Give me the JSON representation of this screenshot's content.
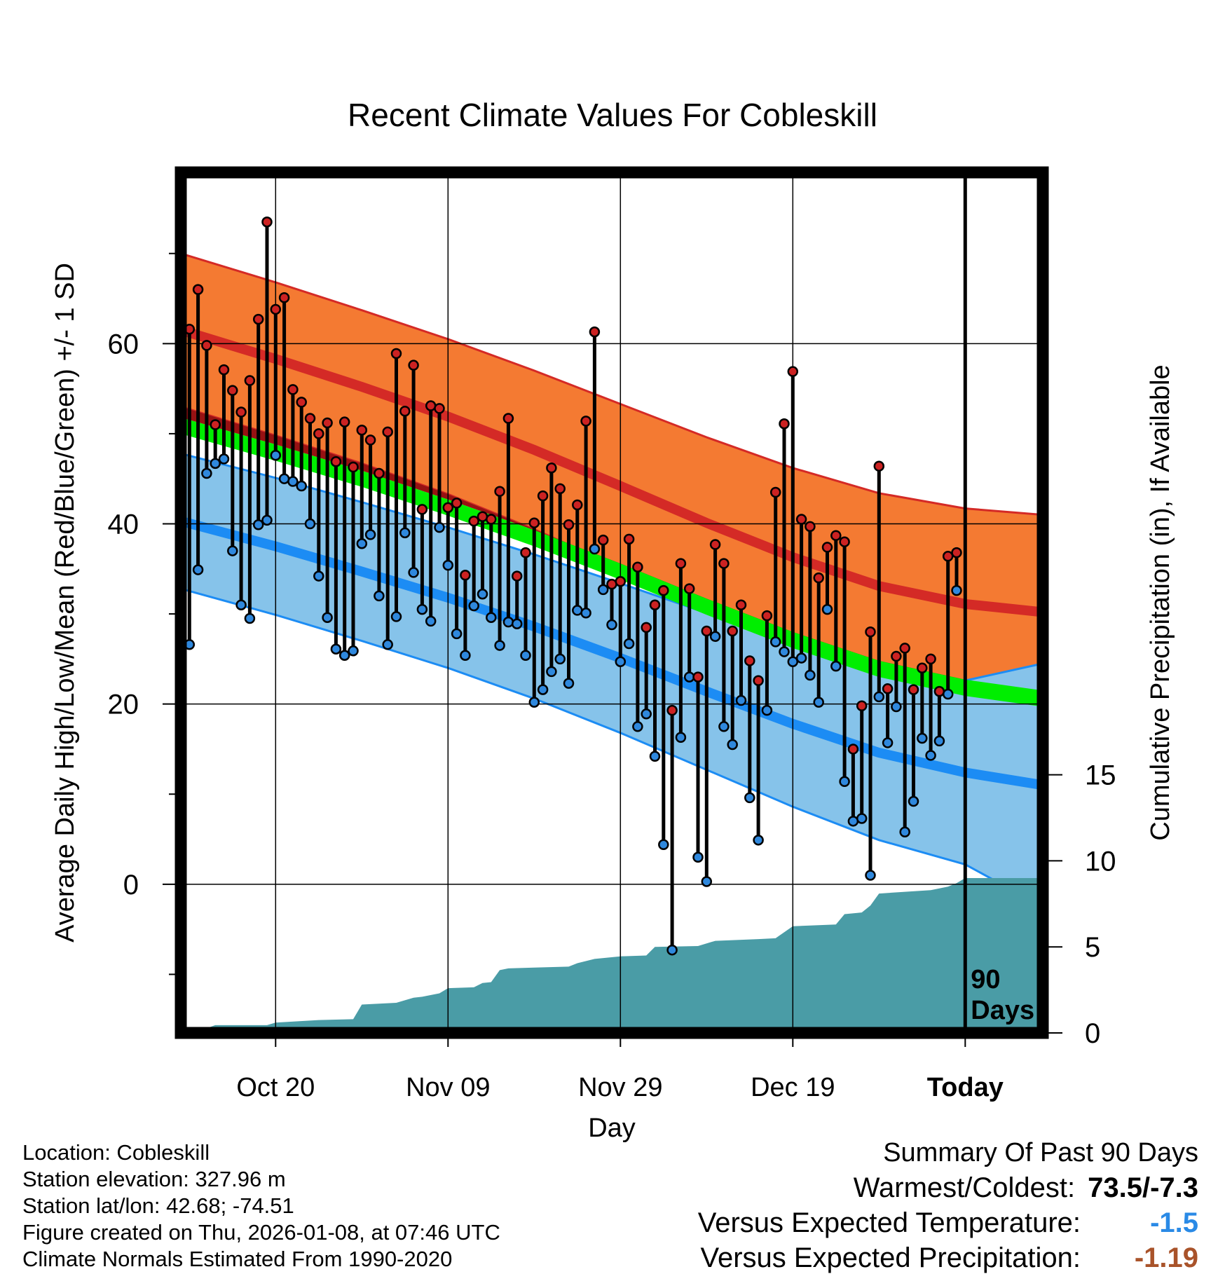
{
  "chart_data": {
    "type": "line",
    "title": "Recent Climate Values For Cobleskill",
    "xlabel": "Day",
    "ylabel": "Average Daily High/Low/Mean (Red/Blue/Green) +/- 1 SD",
    "y2label": "Cumulative Precipitation (in), If Available",
    "xlim": [
      -11,
      89
    ],
    "ylim": [
      -16.5,
      79
    ],
    "y2lim": [
      0,
      50
    ],
    "x_ticks": [
      {
        "x": 0,
        "label": "Oct 20"
      },
      {
        "x": 20,
        "label": "Nov 09"
      },
      {
        "x": 40,
        "label": "Nov 29"
      },
      {
        "x": 60,
        "label": "Dec 19"
      },
      {
        "x": 80,
        "label": "Today"
      }
    ],
    "y_ticks": [
      0,
      20,
      40,
      60
    ],
    "y2_ticks": [
      0,
      5,
      10,
      15
    ],
    "today_marker": {
      "x": 80,
      "label_line1": "90",
      "label_line2": "Days"
    },
    "normals": {
      "x": [
        -11,
        0,
        10,
        20,
        30,
        40,
        50,
        60,
        70,
        80,
        89
      ],
      "high_mean": [
        61.5,
        58.3,
        55.2,
        51.9,
        48.2,
        44.2,
        40.1,
        36.3,
        33.1,
        31.1,
        30.2
      ],
      "high_sd": [
        8.5,
        8.5,
        8.5,
        8.6,
        8.8,
        9.1,
        9.5,
        9.9,
        10.3,
        10.6,
        10.8
      ],
      "low_mean": [
        40.3,
        37.5,
        34.7,
        31.8,
        28.6,
        25.1,
        21.4,
        17.8,
        14.6,
        12.4,
        11.0
      ],
      "low_sd": [
        7.5,
        7.6,
        7.7,
        7.8,
        8.0,
        8.3,
        8.7,
        9.2,
        9.7,
        10.2,
        13.5
      ],
      "mean_temp": [
        50.9,
        47.9,
        45.0,
        41.8,
        38.4,
        34.7,
        30.8,
        27.1,
        23.9,
        21.8,
        20.6
      ],
      "mean_band": 0.9
    },
    "observed": [
      {
        "x": -10,
        "high": 61.6,
        "low": 26.6
      },
      {
        "x": -9,
        "high": 66.0,
        "low": 34.9
      },
      {
        "x": -8,
        "high": 59.8,
        "low": 45.6
      },
      {
        "x": -7,
        "high": 51.0,
        "low": 46.7
      },
      {
        "x": -6,
        "high": 57.1,
        "low": 47.2
      },
      {
        "x": -5,
        "high": 54.8,
        "low": 37.0
      },
      {
        "x": -4,
        "high": 52.4,
        "low": 31.0
      },
      {
        "x": -3,
        "high": 55.9,
        "low": 29.5
      },
      {
        "x": -2,
        "high": 62.7,
        "low": 39.9
      },
      {
        "x": -1,
        "high": 73.5,
        "low": 40.4
      },
      {
        "x": 0,
        "high": 63.8,
        "low": 47.6
      },
      {
        "x": 1,
        "high": 65.1,
        "low": 45.0
      },
      {
        "x": 2,
        "high": 54.9,
        "low": 44.7
      },
      {
        "x": 3,
        "high": 53.5,
        "low": 44.2
      },
      {
        "x": 4,
        "high": 51.7,
        "low": 40.0
      },
      {
        "x": 5,
        "high": 50.0,
        "low": 34.2
      },
      {
        "x": 6,
        "high": 51.2,
        "low": 29.6
      },
      {
        "x": 7,
        "high": 46.9,
        "low": 26.1
      },
      {
        "x": 8,
        "high": 51.3,
        "low": 25.4
      },
      {
        "x": 9,
        "high": 46.3,
        "low": 25.9
      },
      {
        "x": 10,
        "high": 50.4,
        "low": 37.8
      },
      {
        "x": 11,
        "high": 49.3,
        "low": 38.8
      },
      {
        "x": 12,
        "high": 45.6,
        "low": 32.0
      },
      {
        "x": 13,
        "high": 50.2,
        "low": 26.6
      },
      {
        "x": 14,
        "high": 58.9,
        "low": 29.7
      },
      {
        "x": 15,
        "high": 52.5,
        "low": 39.0
      },
      {
        "x": 16,
        "high": 57.6,
        "low": 34.6
      },
      {
        "x": 17,
        "high": 41.6,
        "low": 30.5
      },
      {
        "x": 18,
        "high": 53.1,
        "low": 29.2
      },
      {
        "x": 19,
        "high": 52.8,
        "low": 39.6
      },
      {
        "x": 20,
        "high": 41.8,
        "low": 35.4
      },
      {
        "x": 21,
        "high": 42.3,
        "low": 27.8
      },
      {
        "x": 22,
        "high": 34.3,
        "low": 25.4
      },
      {
        "x": 23,
        "high": 40.3,
        "low": 30.9
      },
      {
        "x": 24,
        "high": 40.8,
        "low": 32.2
      },
      {
        "x": 25,
        "high": 40.5,
        "low": 29.6
      },
      {
        "x": 26,
        "high": 43.6,
        "low": 26.5
      },
      {
        "x": 27,
        "high": 51.7,
        "low": 29.1
      },
      {
        "x": 28,
        "high": 34.2,
        "low": 28.9
      },
      {
        "x": 29,
        "high": 36.8,
        "low": 25.4
      },
      {
        "x": 30,
        "high": 40.1,
        "low": 20.2
      },
      {
        "x": 31,
        "high": 43.1,
        "low": 21.6
      },
      {
        "x": 32,
        "high": 46.2,
        "low": 23.6
      },
      {
        "x": 33,
        "high": 43.9,
        "low": 25.0
      },
      {
        "x": 34,
        "high": 39.9,
        "low": 22.3
      },
      {
        "x": 35,
        "high": 42.1,
        "low": 30.4
      },
      {
        "x": 36,
        "high": 51.4,
        "low": 30.1
      },
      {
        "x": 37,
        "high": 61.3,
        "low": 37.2
      },
      {
        "x": 38,
        "high": 38.2,
        "low": 32.7
      },
      {
        "x": 39,
        "high": 33.3,
        "low": 28.8
      },
      {
        "x": 40,
        "high": 33.6,
        "low": 24.7
      },
      {
        "x": 41,
        "high": 38.3,
        "low": 26.7
      },
      {
        "x": 42,
        "high": 35.2,
        "low": 17.5
      },
      {
        "x": 43,
        "high": 28.5,
        "low": 18.9
      },
      {
        "x": 44,
        "high": 31.0,
        "low": 14.2
      },
      {
        "x": 45,
        "high": 32.6,
        "low": 4.4
      },
      {
        "x": 46,
        "high": 19.3,
        "low": -7.3
      },
      {
        "x": 47,
        "high": 35.6,
        "low": 16.3
      },
      {
        "x": 48,
        "high": 32.8,
        "low": 23.0
      },
      {
        "x": 49,
        "high": 23.0,
        "low": 3.0
      },
      {
        "x": 50,
        "high": 28.1,
        "low": 0.3
      },
      {
        "x": 51,
        "high": 37.7,
        "low": 27.5
      },
      {
        "x": 52,
        "high": 35.6,
        "low": 17.5
      },
      {
        "x": 53,
        "high": 28.1,
        "low": 15.5
      },
      {
        "x": 54,
        "high": 31.0,
        "low": 20.4
      },
      {
        "x": 55,
        "high": 24.8,
        "low": 9.6
      },
      {
        "x": 56,
        "high": 22.6,
        "low": 4.9
      },
      {
        "x": 57,
        "high": 29.8,
        "low": 19.3
      },
      {
        "x": 58,
        "high": 43.5,
        "low": 26.9
      },
      {
        "x": 59,
        "high": 51.1,
        "low": 25.8
      },
      {
        "x": 60,
        "high": 56.9,
        "low": 24.7
      },
      {
        "x": 61,
        "high": 40.5,
        "low": 25.1
      },
      {
        "x": 62,
        "high": 39.7,
        "low": 23.2
      },
      {
        "x": 63,
        "high": 34.0,
        "low": 20.2
      },
      {
        "x": 64,
        "high": 37.4,
        "low": 30.5
      },
      {
        "x": 65,
        "high": 38.7,
        "low": 24.2
      },
      {
        "x": 66,
        "high": 38.0,
        "low": 11.4
      },
      {
        "x": 67,
        "high": 15.0,
        "low": 7.0
      },
      {
        "x": 68,
        "high": 19.8,
        "low": 7.3
      },
      {
        "x": 69,
        "high": 28.0,
        "low": 1.0
      },
      {
        "x": 70,
        "high": 46.4,
        "low": 20.8
      },
      {
        "x": 71,
        "high": 21.7,
        "low": 15.7
      },
      {
        "x": 72,
        "high": 25.3,
        "low": 19.7
      },
      {
        "x": 73,
        "high": 26.2,
        "low": 5.8
      },
      {
        "x": 74,
        "high": 21.6,
        "low": 9.2
      },
      {
        "x": 75,
        "high": 24.0,
        "low": 16.2
      },
      {
        "x": 76,
        "high": 25.0,
        "low": 14.3
      },
      {
        "x": 77,
        "high": 21.4,
        "low": 15.9
      },
      {
        "x": 78,
        "high": 36.4,
        "low": 21.1
      },
      {
        "x": 79,
        "high": 36.8,
        "low": 32.6
      }
    ],
    "precipitation": {
      "x": [
        -10,
        -9,
        -7,
        -4,
        -1,
        0,
        5,
        9,
        10,
        14,
        16,
        17,
        19,
        20,
        23,
        24,
        25,
        26,
        27,
        30,
        34,
        35,
        37,
        40,
        43,
        44,
        49,
        51,
        56,
        58,
        60,
        65,
        66,
        68,
        69,
        70,
        76,
        78,
        79,
        80
      ],
      "values": [
        0.0,
        0.1,
        0.45,
        0.45,
        0.45,
        0.6,
        0.75,
        0.8,
        1.65,
        1.75,
        2.05,
        2.1,
        2.3,
        2.6,
        2.65,
        2.9,
        2.95,
        3.65,
        3.75,
        3.8,
        3.85,
        4.05,
        4.3,
        4.45,
        4.5,
        5.0,
        5.05,
        5.35,
        5.45,
        5.5,
        6.2,
        6.3,
        6.9,
        7.0,
        7.4,
        8.1,
        8.3,
        8.5,
        8.7,
        9.0
      ]
    }
  },
  "info": {
    "location": "Location: Cobleskill",
    "elevation": "Station elevation: 327.96 m",
    "latlon": "Station lat/lon: 42.68; -74.51",
    "created": "Figure created on Thu, 2026-01-08, at 07:46 UTC",
    "normals": "Climate Normals Estimated From 1990-2020"
  },
  "summary": {
    "heading": "Summary Of Past 90 Days",
    "warmest_coldest_label": "Warmest/Coldest:",
    "warmest_coldest_value": "73.5/-7.3",
    "temp_label": "Versus Expected Temperature:",
    "temp_value": "-1.5",
    "precip_label": "Versus Expected Precipitation:",
    "precip_value": "-1.19"
  },
  "colors": {
    "high_band": "#f47a32",
    "high_line": "#d42a26",
    "low_band": "#86c3ea",
    "low_line": "#1c8cf4",
    "mean_band": "#00ee00",
    "deficit": "#971213",
    "precip": "#4a9ca6",
    "high_marker": "#cc2222",
    "low_marker": "#2f88dd",
    "temp_value": "#2a8ae6",
    "precip_value": "#a9532a"
  }
}
